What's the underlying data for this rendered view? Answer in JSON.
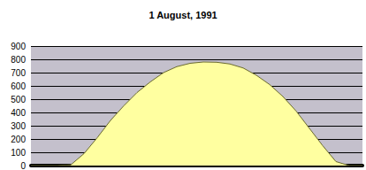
{
  "chart_data": {
    "type": "area",
    "title": "1 August, 1991",
    "categories": [
      null,
      null,
      null,
      null,
      null,
      null,
      null,
      null,
      null,
      null,
      null,
      null,
      null,
      null,
      null,
      null,
      null,
      null,
      null,
      null,
      null,
      null,
      null,
      null,
      null,
      null
    ],
    "values": [
      0,
      0,
      0,
      5,
      90,
      210,
      340,
      450,
      550,
      630,
      700,
      745,
      770,
      780,
      778,
      765,
      735,
      680,
      610,
      520,
      410,
      280,
      150,
      30,
      0,
      0
    ],
    "color": "#ffffa0",
    "ylim": [
      0,
      900
    ],
    "yticks": [
      0,
      100,
      200,
      300,
      400,
      500,
      600,
      700,
      800,
      900
    ],
    "grid": true,
    "tick_labels": "y"
  }
}
